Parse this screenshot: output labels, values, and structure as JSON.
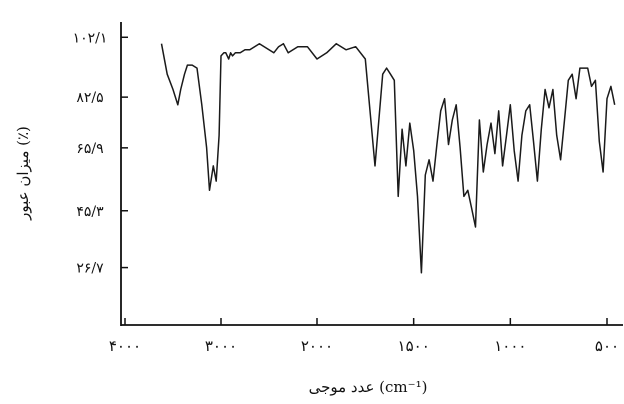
{
  "chart_data": {
    "type": "line",
    "title": "",
    "xlabel": "عدد موجی (cm⁻¹)",
    "ylabel": "میزان عبور (٪)",
    "x_axis_reversed": true,
    "xlim": [
      4000,
      450
    ],
    "ylim": [
      7.9,
      107.1
    ],
    "grid": false,
    "legend": "none",
    "line_color": "#1a1a1a",
    "xticks": [
      {
        "value": 4000,
        "label": "۴۰۰۰"
      },
      {
        "value": 3000,
        "label": "۳۰۰۰"
      },
      {
        "value": 2000,
        "label": "۲۰۰۰"
      },
      {
        "value": 1500,
        "label": "۱۵۰۰"
      },
      {
        "value": 1000,
        "label": "۱۰۰۰"
      },
      {
        "value": 500,
        "label": "۵۰۰"
      }
    ],
    "yticks": [
      {
        "value": 26.7,
        "label": "۲۶/۷"
      },
      {
        "value": 45.3,
        "label": "۴۵/۳"
      },
      {
        "value": 65.9,
        "label": "۶۵/۹"
      },
      {
        "value": 82.5,
        "label": "۸۲/۵"
      },
      {
        "value": 102.1,
        "label": "۱۰۲/۱"
      }
    ],
    "series": [
      {
        "x": [
          3620,
          3560,
          3500,
          3450,
          3420,
          3380,
          3350,
          3300,
          3250,
          3200,
          3150,
          3120,
          3080,
          3050,
          3020,
          3000,
          2970,
          2950,
          2920,
          2900,
          2880,
          2850,
          2800,
          2750,
          2700,
          2650,
          2600,
          2550,
          2500,
          2450,
          2400,
          2350,
          2300,
          2200,
          2100,
          2000,
          1950,
          1900,
          1850,
          1800,
          1750,
          1700,
          1660,
          1640,
          1620,
          1600,
          1580,
          1560,
          1540,
          1520,
          1500,
          1480,
          1460,
          1440,
          1420,
          1400,
          1380,
          1360,
          1340,
          1320,
          1300,
          1280,
          1260,
          1240,
          1220,
          1200,
          1180,
          1160,
          1140,
          1120,
          1100,
          1080,
          1060,
          1040,
          1020,
          1000,
          980,
          960,
          940,
          920,
          900,
          880,
          860,
          840,
          820,
          800,
          780,
          760,
          740,
          720,
          700,
          680,
          660,
          640,
          620,
          600,
          580,
          560,
          540,
          520,
          500,
          480,
          460
        ],
        "y": [
          100,
          90,
          85,
          80,
          85,
          90,
          93,
          93,
          92,
          80,
          66,
          52,
          60,
          55,
          70,
          96,
          97,
          97,
          95,
          97,
          96,
          97,
          97,
          98,
          98,
          99,
          100,
          99,
          98,
          97,
          99,
          100,
          97,
          99,
          99,
          95,
          97,
          100,
          98,
          99,
          95,
          60,
          90,
          92,
          90,
          88,
          50,
          72,
          60,
          74,
          65,
          50,
          25,
          57,
          62,
          55,
          67,
          78,
          82,
          67,
          75,
          80,
          66,
          50,
          52,
          46,
          40,
          75,
          58,
          67,
          74,
          64,
          78,
          60,
          70,
          80,
          65,
          55,
          70,
          78,
          80,
          68,
          55,
          72,
          85,
          79,
          85,
          70,
          62,
          75,
          88,
          90,
          82,
          92,
          92,
          92,
          86,
          88,
          68,
          58,
          82,
          86,
          80
        ]
      }
    ]
  }
}
